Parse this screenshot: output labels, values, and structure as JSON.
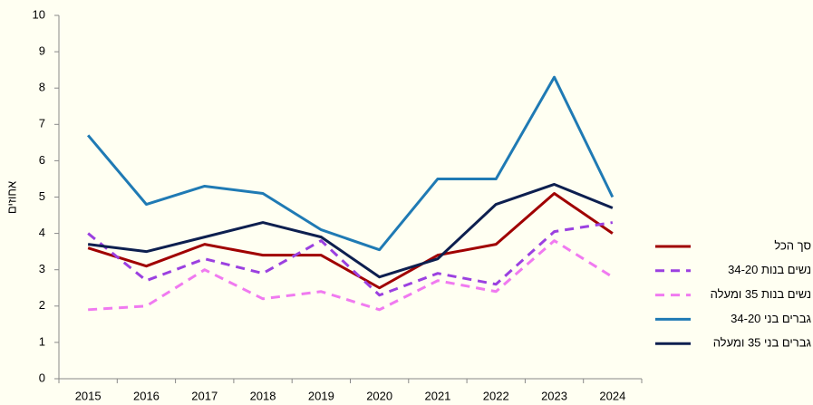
{
  "chart_data": {
    "type": "line",
    "ylabel": "אחוזים",
    "categories": [
      "2015",
      "2016",
      "2017",
      "2018",
      "2019",
      "2020",
      "2021",
      "2022",
      "2023",
      "2024"
    ],
    "series": [
      {
        "name": "סך הכל",
        "color": "#a00000",
        "dashed": false,
        "values": [
          3.6,
          3.1,
          3.7,
          3.4,
          3.4,
          2.5,
          3.4,
          3.7,
          5.1,
          4.0
        ]
      },
      {
        "name": "נשים בנות 34-20",
        "color": "#9b40e0",
        "dashed": true,
        "values": [
          4.0,
          2.7,
          3.3,
          2.9,
          3.8,
          2.3,
          2.9,
          2.6,
          4.05,
          4.3
        ]
      },
      {
        "name": "נשים בנות 35 ומעלה",
        "color": "#f07af0",
        "dashed": true,
        "values": [
          1.9,
          2.0,
          3.0,
          2.2,
          2.4,
          1.9,
          2.7,
          2.4,
          3.8,
          2.8
        ]
      },
      {
        "name": "גברים בני 34-20",
        "color": "#1f7ab4",
        "dashed": false,
        "values": [
          6.7,
          4.8,
          5.3,
          5.1,
          4.1,
          3.55,
          5.5,
          5.5,
          8.3,
          5.0
        ]
      },
      {
        "name": "גברים בני 35 ומעלה",
        "color": "#0d1f4f",
        "dashed": false,
        "values": [
          3.7,
          3.5,
          3.9,
          4.3,
          3.9,
          2.8,
          3.3,
          4.8,
          5.35,
          4.7
        ]
      }
    ],
    "ylim": [
      0,
      10
    ],
    "yticks": [
      0,
      1,
      2,
      3,
      4,
      5,
      6,
      7,
      8,
      9,
      10
    ],
    "grid": false,
    "legend_position": "right"
  }
}
